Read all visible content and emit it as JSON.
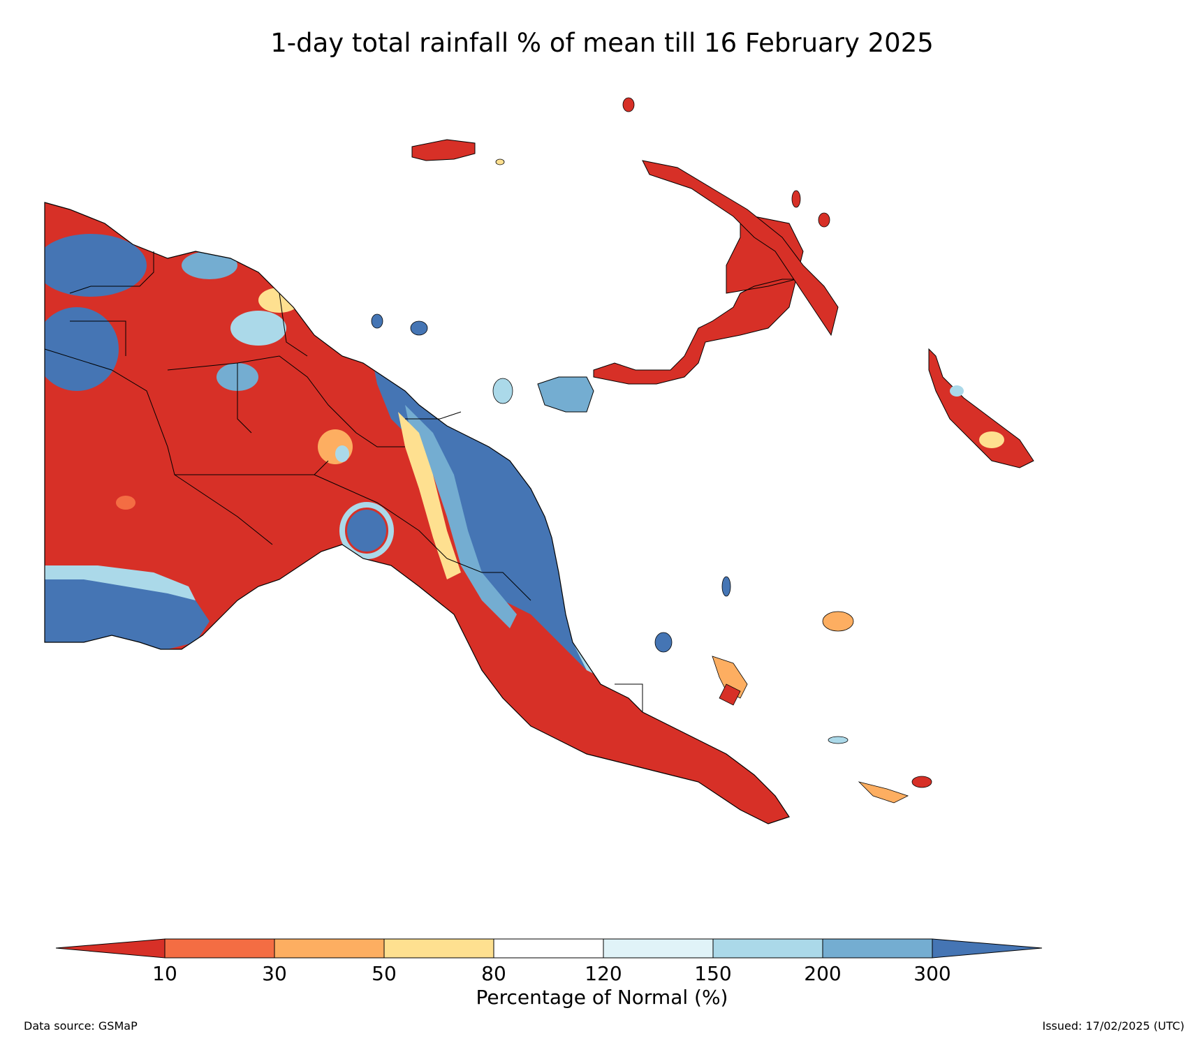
{
  "title": "1-day total rainfall % of mean till 16 February 2025",
  "legend": {
    "label": "Percentage of Normal (%)",
    "ticks": [
      "10",
      "30",
      "50",
      "80",
      "120",
      "150",
      "200",
      "300"
    ],
    "classes": [
      {
        "range": "< 10",
        "color": "#d73027"
      },
      {
        "range": "10-30",
        "color": "#f46d43"
      },
      {
        "range": "30-50",
        "color": "#fdae61"
      },
      {
        "range": "50-80",
        "color": "#fee090"
      },
      {
        "range": "80-120",
        "color": "#ffffff"
      },
      {
        "range": "120-150",
        "color": "#e0f3f8"
      },
      {
        "range": "150-200",
        "color": "#abd9e9"
      },
      {
        "range": "200-300",
        "color": "#74add1"
      },
      {
        "range": "> 300",
        "color": "#4575b4"
      }
    ]
  },
  "footer": {
    "source": "Data source: GSMaP",
    "issued": "Issued: 17/02/2025 (UTC)"
  }
}
